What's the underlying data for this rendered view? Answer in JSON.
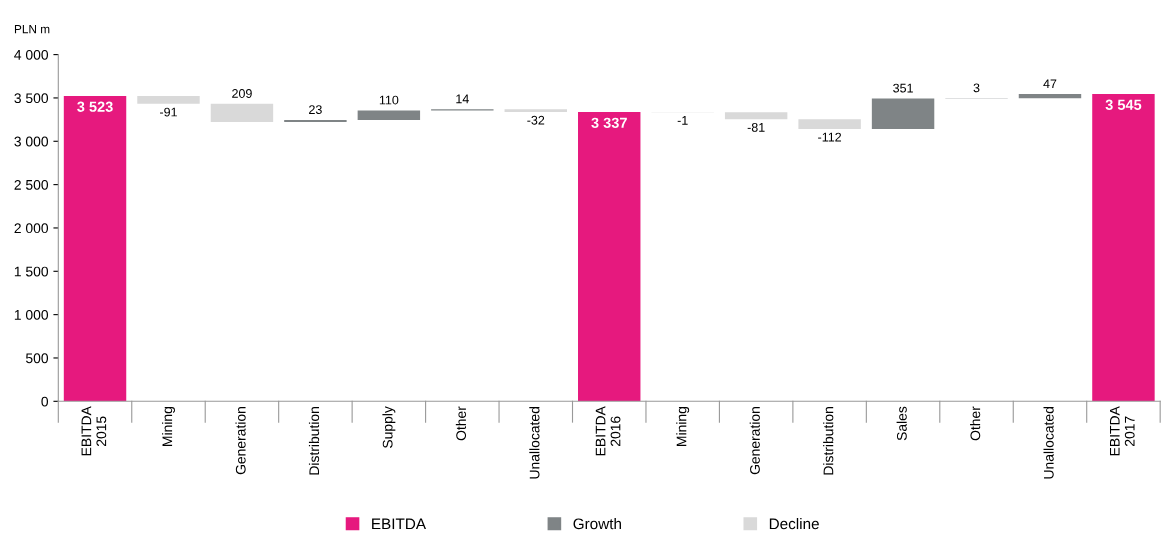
{
  "chart_data": {
    "type": "bar",
    "ylabel": "PLN m",
    "categories": [
      "EBITDA\n2015",
      "Mining",
      "Generation",
      "Distribution",
      "Supply",
      "Other",
      "Unallocated",
      "EBITDA\n2016",
      "Mining",
      "Generation",
      "Distribution",
      "Sales",
      "Other",
      "Unallocated",
      "EBITDA\n2017"
    ],
    "series": [
      {
        "name": "EBITDA",
        "color": "#e6197e",
        "base": [
          0,
          null,
          null,
          null,
          null,
          null,
          null,
          0,
          null,
          null,
          null,
          null,
          null,
          null,
          0
        ],
        "values": [
          3523,
          null,
          null,
          null,
          null,
          null,
          null,
          3337,
          null,
          null,
          null,
          null,
          null,
          null,
          3545
        ],
        "value_labels": [
          "3 523",
          null,
          null,
          null,
          null,
          null,
          null,
          "3 337",
          null,
          null,
          null,
          null,
          null,
          null,
          "3 545"
        ]
      },
      {
        "name": "Growth",
        "color": "#7f8486",
        "base": [
          null,
          null,
          null,
          3223,
          3246,
          3356,
          null,
          null,
          null,
          null,
          null,
          3143,
          3494,
          3497,
          null
        ],
        "values": [
          null,
          null,
          null,
          23,
          110,
          14,
          null,
          null,
          null,
          null,
          null,
          351,
          3,
          47,
          null
        ],
        "value_labels": [
          null,
          null,
          null,
          "23",
          "110",
          "14",
          null,
          null,
          null,
          null,
          null,
          "351",
          "3",
          "47",
          null
        ]
      },
      {
        "name": "Decline",
        "color": "#d9d9d9",
        "base": [
          null,
          3523,
          3223,
          null,
          null,
          null,
          3370,
          null,
          3337,
          3336,
          3255,
          null,
          null,
          null,
          null
        ],
        "values": [
          null,
          -91,
          209,
          null,
          null,
          null,
          -32,
          null,
          -1,
          -81,
          -112,
          null,
          null,
          null,
          null
        ],
        "value_labels": [
          null,
          "-91",
          "209",
          null,
          null,
          null,
          "-32",
          null,
          "-1",
          "-81",
          "-112",
          null,
          null,
          null,
          null
        ]
      }
    ],
    "ylim": [
      0,
      4000
    ],
    "yticks": [
      0,
      500,
      {
        "value": 1000,
        "label": "1 000"
      },
      {
        "value": 1500,
        "label": "1 500"
      },
      {
        "value": 2000,
        "label": "2 000"
      },
      {
        "value": 2500,
        "label": "2 500"
      },
      {
        "value": 3000,
        "label": "3 000"
      },
      {
        "value": 3500,
        "label": "3 500"
      },
      {
        "value": 4000,
        "label": "4 000"
      }
    ],
    "grid": false,
    "legend": "bottom"
  }
}
